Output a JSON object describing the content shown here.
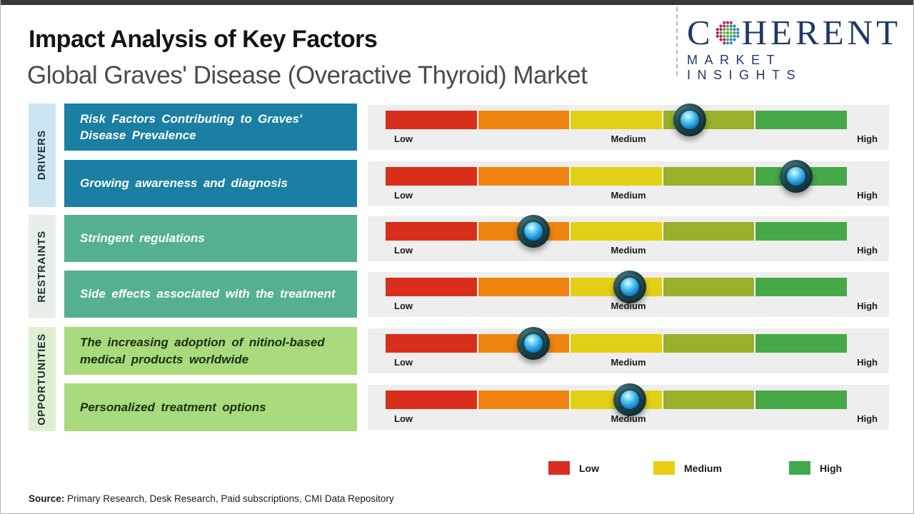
{
  "header": {
    "title": "Impact Analysis of Key Factors",
    "subtitle": "Global Graves' Disease (Overactive Thyroid) Market"
  },
  "logo": {
    "brand_prefix": "C",
    "brand_suffix": "HERENT",
    "brand_subtitle": "MARKET INSIGHTS",
    "globe_icon": "dotted-globe-icon",
    "brand_color": "#1e3a67"
  },
  "chart_data": {
    "type": "bar",
    "subtype": "impact-rating-scale",
    "title": "Impact Analysis of Key Factors",
    "subtitle": "Global Graves' Disease (Overactive Thyroid) Market",
    "scale": {
      "min_label": "Low",
      "mid_label": "Medium",
      "max_label": "High"
    },
    "axis_range_percent": [
      0,
      100
    ],
    "segment_colors": [
      "#d82e1b",
      "#ef8410",
      "#e2cf16",
      "#9ab02a",
      "#46a847"
    ],
    "groups": [
      {
        "label": "DRIVERS",
        "box_color": "#1a7fa2",
        "label_bg": "#cbe6f2"
      },
      {
        "label": "RESTRAINTS",
        "box_color": "#55b091",
        "label_bg": "#e8efe9"
      },
      {
        "label": "OPPORTUNITIES",
        "box_color": "#a9da7d",
        "label_bg": "#dff0d2"
      }
    ],
    "rows": [
      {
        "group": "DRIVERS",
        "factor": "Risk Factors Contributing to Graves' Disease Prevalence",
        "impact_percent": 66,
        "impact_level": "Medium-High"
      },
      {
        "group": "DRIVERS",
        "factor": "Growing awareness and diagnosis",
        "impact_percent": 89,
        "impact_level": "High"
      },
      {
        "group": "RESTRAINTS",
        "factor": "Stringent regulations",
        "impact_percent": 32,
        "impact_level": "Low-Medium"
      },
      {
        "group": "RESTRAINTS",
        "factor": "Side effects associated with the treatment",
        "impact_percent": 53,
        "impact_level": "Medium"
      },
      {
        "group": "OPPORTUNITIES",
        "factor": "The increasing adoption of nitinol-based medical products worldwide",
        "impact_percent": 32,
        "impact_level": "Low-Medium"
      },
      {
        "group": "OPPORTUNITIES",
        "factor": "Personalized treatment options",
        "impact_percent": 53,
        "impact_level": "Medium"
      }
    ]
  },
  "legend": {
    "items": [
      {
        "label": "Low",
        "color": "#d92c1e"
      },
      {
        "label": "Medium",
        "color": "#e9cf10"
      },
      {
        "label": "High",
        "color": "#3fa94c"
      }
    ]
  },
  "source": {
    "label": "Source:",
    "text": " Primary Research, Desk Research, Paid subscriptions, CMI Data Repository"
  }
}
